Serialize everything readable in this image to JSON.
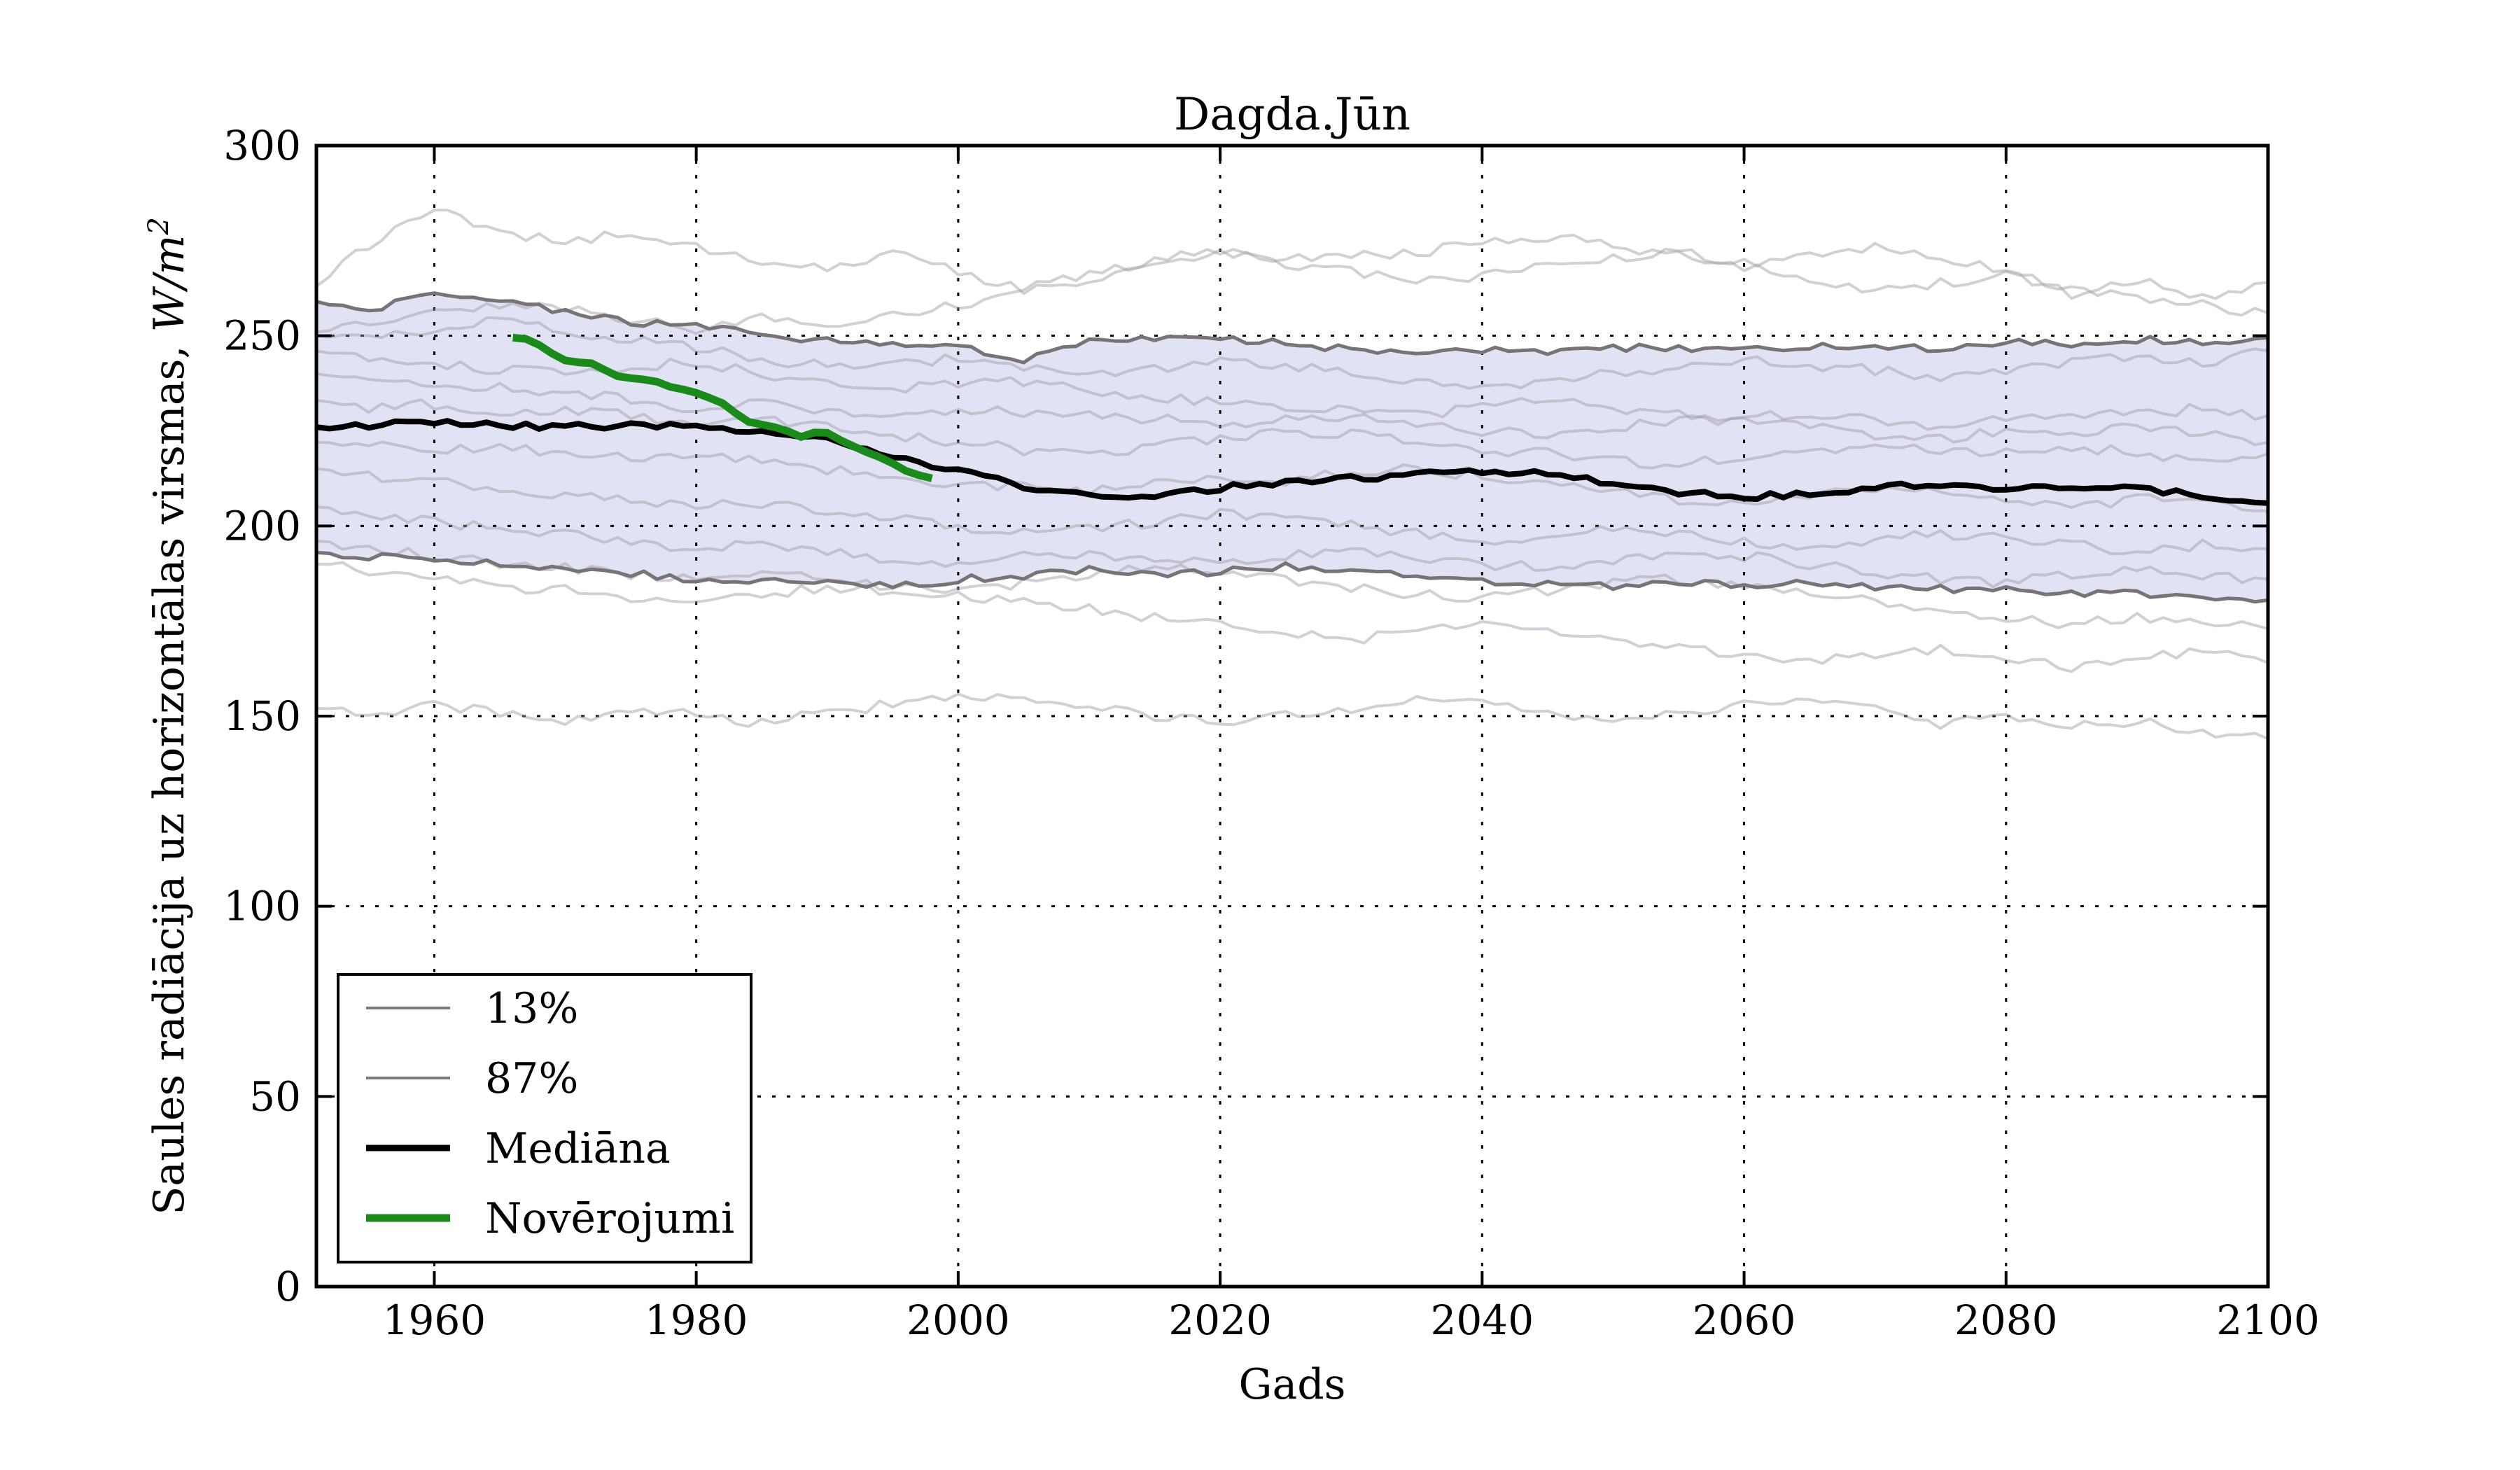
{
  "chart_data": {
    "type": "line",
    "title": "Dagda.Jūn",
    "xlabel": "Gads",
    "ylabel": "Saules radiācija uz horizontālas virsmas, W/m²",
    "ylabel_parts": {
      "main": "Saules radiācija uz horizontālas virsmas, ",
      "math": "W/m",
      "exp": "2"
    },
    "xlim": [
      1951,
      2100
    ],
    "ylim": [
      0,
      300
    ],
    "xticks": [
      1960,
      1980,
      2000,
      2020,
      2040,
      2060,
      2080,
      2100
    ],
    "yticks": [
      0,
      50,
      100,
      150,
      200,
      250,
      300
    ],
    "grid": "dotted",
    "legend_position": "lower-left",
    "colors": {
      "band_fill": "#e2e2f5",
      "band_edge": "#757575",
      "ensemble": "#9a9aa2",
      "median": "#000000",
      "observations": "#1a8a1a",
      "grid": "#000000",
      "spine": "#000000"
    },
    "x_keys": [
      1951,
      1955,
      1960,
      1965,
      1970,
      1975,
      1980,
      1985,
      1990,
      1995,
      2000,
      2005,
      2010,
      2015,
      2020,
      2025,
      2030,
      2035,
      2040,
      2045,
      2050,
      2055,
      2060,
      2065,
      2070,
      2075,
      2080,
      2085,
      2090,
      2095,
      2100
    ],
    "series": {
      "band_upper_87pct": [
        259,
        256.5,
        261,
        259.5,
        256,
        253.5,
        252.5,
        250.5,
        248.5,
        248,
        247,
        243.5,
        248.5,
        249.5,
        249,
        248,
        246.5,
        246,
        246.5,
        246,
        247,
        246.5,
        246,
        247.5,
        246.5,
        247,
        248.5,
        247.5,
        249,
        248,
        249.5
      ],
      "band_lower_13pct": [
        193,
        192,
        191,
        190,
        189,
        187.5,
        186,
        185.5,
        185,
        184,
        186,
        187,
        188.5,
        187.5,
        188,
        189.5,
        188,
        186.5,
        185.5,
        185,
        184,
        185.5,
        184.5,
        185,
        184,
        183.5,
        183,
        182.5,
        182,
        181.5,
        180.5
      ],
      "median": [
        226,
        226.5,
        227.5,
        226.5,
        226,
        226.5,
        226,
        225,
        222.5,
        218,
        214.5,
        210.5,
        208,
        207.5,
        210,
        211.5,
        212.5,
        213.5,
        214,
        214,
        211,
        209,
        207.5,
        208.5,
        210,
        211,
        210,
        210.5,
        210,
        208,
        206
      ],
      "ensemble": [
        [
          263,
          274,
          283,
          277,
          275,
          277,
          273,
          270,
          268,
          272,
          267,
          262,
          265,
          269,
          272,
          270,
          271,
          272,
          274,
          276,
          274,
          271,
          269,
          271,
          273,
          270,
          267,
          261,
          265,
          260,
          264
        ],
        [
          251,
          253,
          256,
          258,
          257,
          254,
          252,
          255,
          253,
          256,
          258,
          263,
          266,
          270,
          272,
          269,
          267,
          264,
          266,
          268,
          270,
          272,
          268,
          265,
          262,
          264,
          266,
          263,
          260,
          258,
          256
        ],
        [
          250,
          249,
          252,
          254,
          251,
          249,
          247,
          244,
          242,
          243,
          244,
          242,
          240,
          241,
          243,
          242,
          240,
          238,
          236,
          238,
          240,
          242,
          244,
          242,
          241,
          239,
          241,
          243,
          245,
          243,
          246
        ],
        [
          246,
          244,
          243,
          241,
          240,
          242,
          243,
          240,
          238,
          236,
          237,
          238,
          236,
          234,
          232,
          231,
          230,
          229,
          231,
          233,
          231,
          229,
          228,
          230,
          228,
          226,
          228,
          230,
          229,
          231,
          229
        ],
        [
          240,
          238,
          236,
          237,
          235,
          233,
          231,
          232,
          230,
          229,
          231,
          230,
          229,
          228,
          227,
          228,
          229,
          227,
          225,
          224,
          226,
          228,
          227,
          226,
          224,
          223,
          225,
          224,
          226,
          224,
          222
        ],
        [
          233,
          231,
          232,
          230,
          231,
          229,
          227,
          228,
          226,
          224,
          222,
          220,
          219,
          221,
          223,
          225,
          224,
          222,
          220,
          219,
          217,
          216,
          218,
          219,
          221,
          220,
          219,
          221,
          219,
          217,
          219
        ],
        [
          222,
          221,
          220,
          221,
          219,
          218,
          219,
          217,
          215,
          213,
          211,
          210,
          209,
          211,
          213,
          212,
          214,
          215,
          213,
          211,
          209,
          207,
          206,
          208,
          210,
          209,
          207,
          205,
          207,
          206,
          204
        ],
        [
          215,
          213,
          212,
          210,
          208,
          207,
          205,
          206,
          204,
          202,
          200,
          198,
          199,
          201,
          203,
          202,
          200,
          198,
          196,
          197,
          199,
          198,
          196,
          194,
          196,
          198,
          197,
          195,
          193,
          195,
          194
        ],
        [
          205,
          203,
          201,
          199,
          198,
          196,
          194,
          195,
          193,
          191,
          190,
          192,
          193,
          191,
          190,
          192,
          194,
          192,
          190,
          189,
          191,
          193,
          192,
          190,
          188,
          186,
          185,
          187,
          189,
          187,
          186
        ],
        [
          196,
          194,
          192,
          190,
          189,
          187,
          186,
          188,
          186,
          184,
          183,
          185,
          187,
          189,
          188,
          186,
          184,
          182,
          181,
          183,
          185,
          186,
          184,
          182,
          180,
          178,
          176,
          174,
          176,
          175,
          173
        ],
        [
          190,
          188,
          186,
          184,
          183,
          181,
          180,
          182,
          184,
          183,
          182,
          180,
          178,
          176,
          174,
          172,
          170,
          172,
          174,
          172,
          170,
          168,
          166,
          164,
          166,
          168,
          165,
          163,
          165,
          167,
          164
        ],
        [
          152,
          150,
          153,
          151,
          149,
          152,
          150,
          148,
          151,
          153,
          155,
          154,
          152,
          150,
          148,
          150,
          152,
          154,
          153,
          151,
          149,
          151,
          153,
          155,
          152,
          148,
          150,
          147,
          149,
          146,
          144
        ]
      ],
      "observations_x": [
        1966,
        1968,
        1970,
        1972,
        1974,
        1976,
        1978,
        1980,
        1982,
        1984,
        1986,
        1988,
        1990,
        1992,
        1994,
        1996,
        1998
      ],
      "observations": [
        249.5,
        248,
        243.5,
        242.5,
        239.5,
        238,
        237,
        235,
        232.5,
        227.5,
        226,
        223.8,
        224.5,
        221,
        218,
        214.5,
        212.5
      ]
    },
    "legend": {
      "items": [
        {
          "label": "13%",
          "color": "#7a7a7a",
          "lw": 4
        },
        {
          "label": "87%",
          "color": "#7a7a7a",
          "lw": 4
        },
        {
          "label": "Mediāna",
          "color": "#000000",
          "lw": 9
        },
        {
          "label": "Novērojumi",
          "color": "#1a8a1a",
          "lw": 11
        }
      ]
    }
  }
}
